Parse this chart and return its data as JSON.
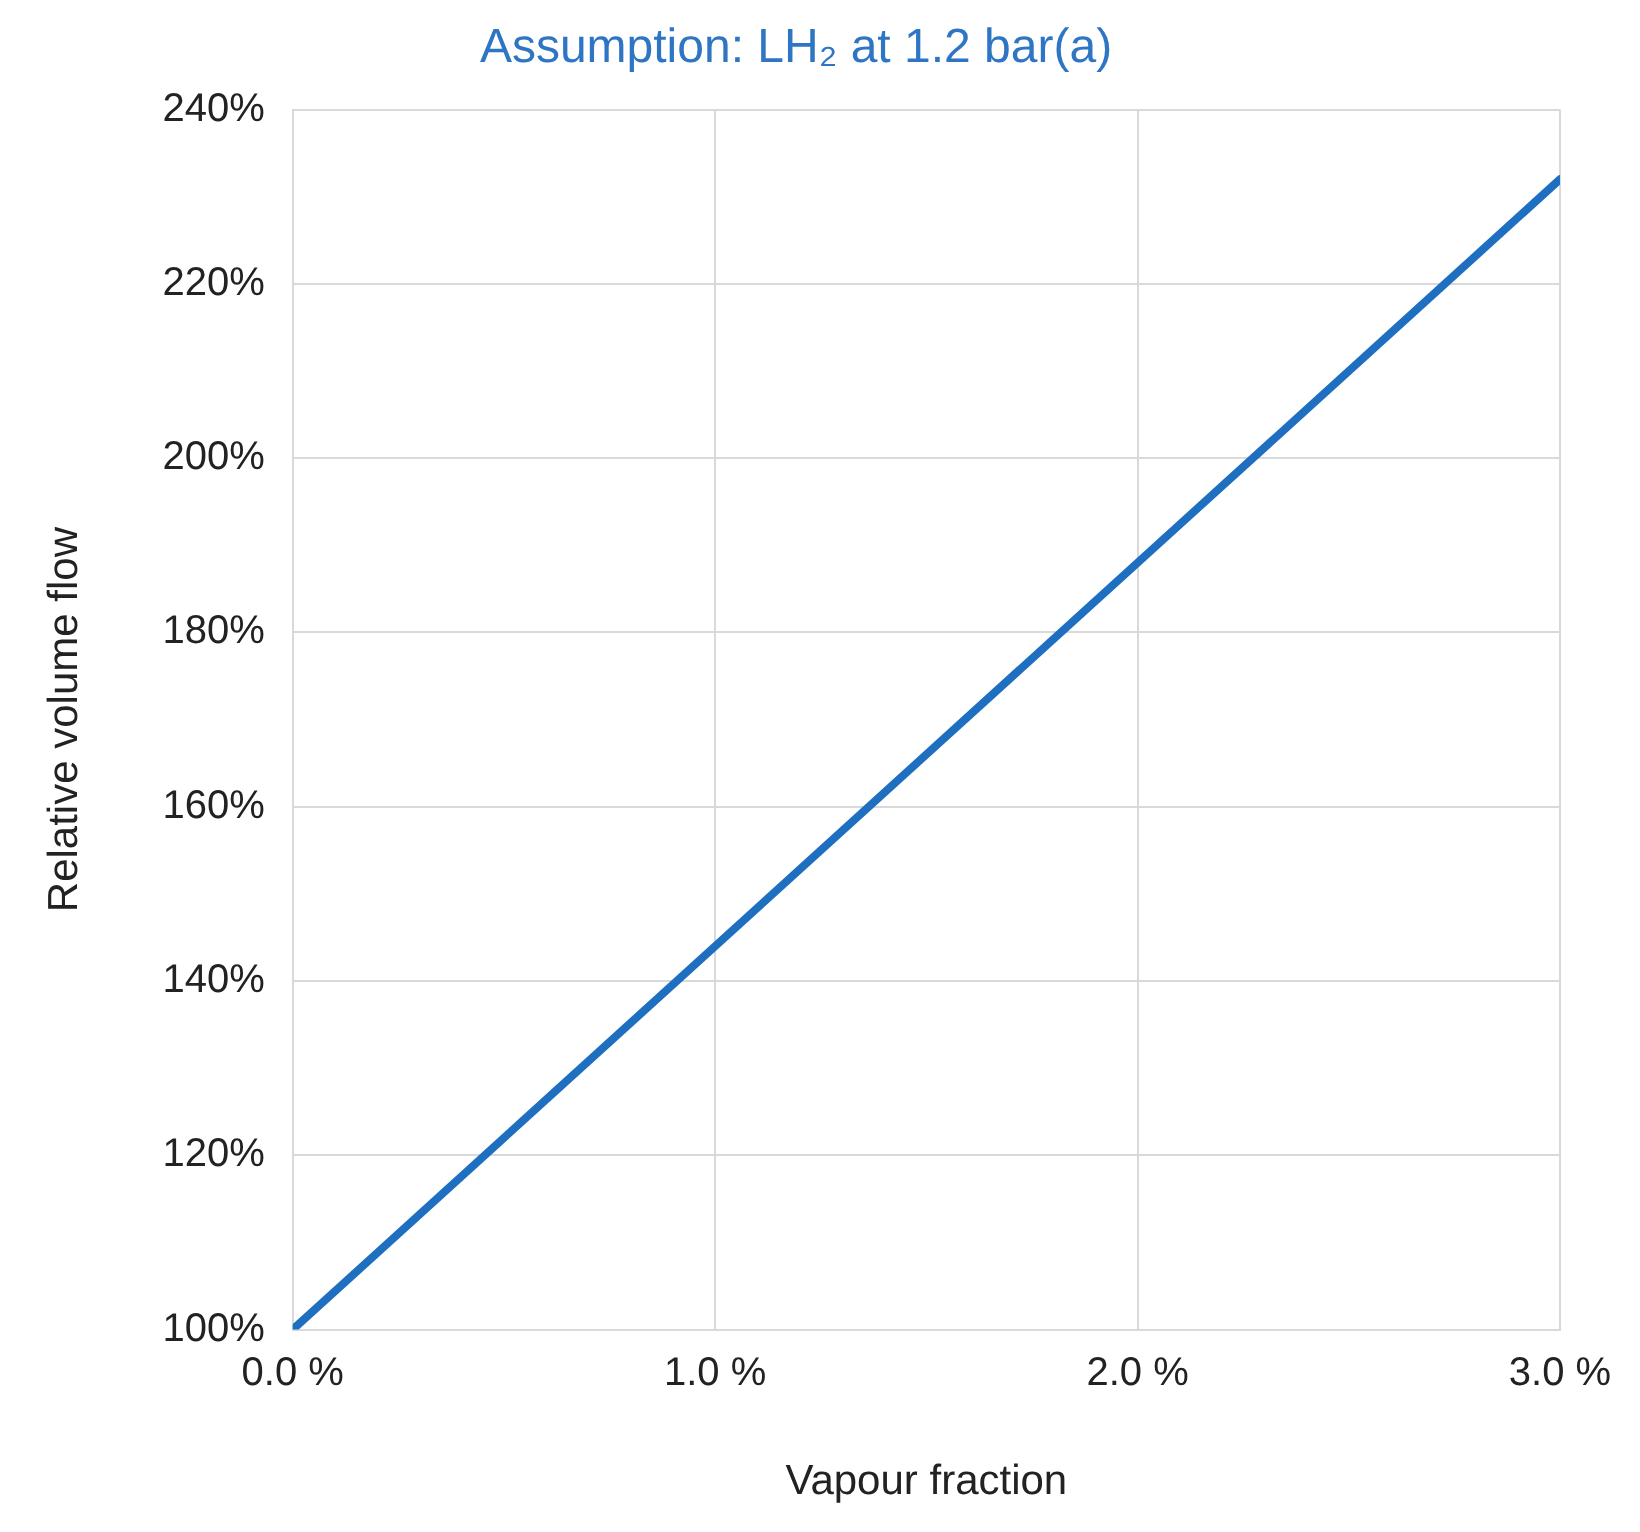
{
  "chart_data": {
    "type": "line",
    "title": "Assumption: LH₂ at 1.2 bar(a)",
    "xlabel": "Vapour fraction",
    "ylabel": "Relative volume flow",
    "x": [
      0,
      3
    ],
    "series": [
      {
        "color": "#1f6fc0",
        "values": [
          100,
          232
        ]
      }
    ],
    "xlim": [
      0,
      3
    ],
    "xticks": [
      {
        "value": 0,
        "label": "0.0 %"
      },
      {
        "value": 1,
        "label": "1.0 %"
      },
      {
        "value": 2,
        "label": "2.0 %"
      },
      {
        "value": 3,
        "label": "3.0 %"
      }
    ],
    "ylim": [
      100,
      240
    ],
    "yticks": [
      {
        "value": 100,
        "label": "100%"
      },
      {
        "value": 120,
        "label": "120%"
      },
      {
        "value": 140,
        "label": "140%"
      },
      {
        "value": 160,
        "label": "160%"
      },
      {
        "value": 180,
        "label": "180%"
      },
      {
        "value": 200,
        "label": "200%"
      },
      {
        "value": 220,
        "label": "220%"
      },
      {
        "value": 240,
        "label": "240%"
      }
    ],
    "grid": true,
    "legend": false,
    "marker": "none",
    "line_style": "solid"
  }
}
